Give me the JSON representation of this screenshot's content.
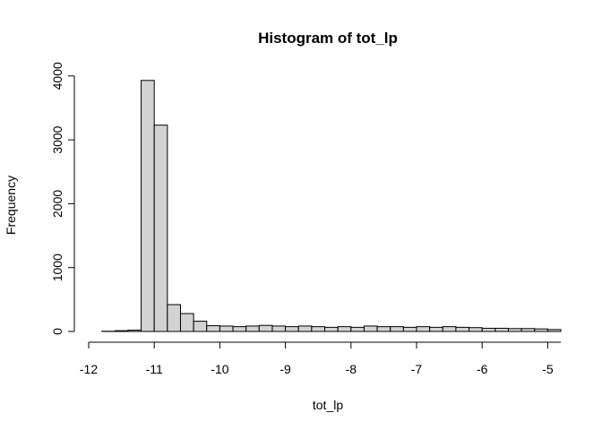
{
  "chart_data": {
    "type": "bar",
    "title": "Histogram of tot_lp",
    "xlabel": "tot_lp",
    "ylabel": "Frequency",
    "xlim": [
      -12.0,
      -4.8
    ],
    "ylim": [
      0,
      4000
    ],
    "x_ticks": [
      -12,
      -11,
      -10,
      -9,
      -8,
      -7,
      -6,
      -5
    ],
    "y_ticks": [
      0,
      1000,
      2000,
      3000,
      4000
    ],
    "bins": [
      {
        "x0": -11.8,
        "x1": -11.6,
        "count": 3
      },
      {
        "x0": -11.6,
        "x1": -11.4,
        "count": 12
      },
      {
        "x0": -11.4,
        "x1": -11.2,
        "count": 20
      },
      {
        "x0": -11.2,
        "x1": -11.0,
        "count": 3930
      },
      {
        "x0": -11.0,
        "x1": -10.8,
        "count": 3230
      },
      {
        "x0": -10.8,
        "x1": -10.6,
        "count": 420
      },
      {
        "x0": -10.6,
        "x1": -10.4,
        "count": 280
      },
      {
        "x0": -10.4,
        "x1": -10.2,
        "count": 160
      },
      {
        "x0": -10.2,
        "x1": -10.0,
        "count": 90
      },
      {
        "x0": -10.0,
        "x1": -9.8,
        "count": 85
      },
      {
        "x0": -9.8,
        "x1": -9.6,
        "count": 75
      },
      {
        "x0": -9.6,
        "x1": -9.4,
        "count": 85
      },
      {
        "x0": -9.4,
        "x1": -9.2,
        "count": 95
      },
      {
        "x0": -9.2,
        "x1": -9.0,
        "count": 85
      },
      {
        "x0": -9.0,
        "x1": -8.8,
        "count": 75
      },
      {
        "x0": -8.8,
        "x1": -8.6,
        "count": 85
      },
      {
        "x0": -8.6,
        "x1": -8.4,
        "count": 75
      },
      {
        "x0": -8.4,
        "x1": -8.2,
        "count": 65
      },
      {
        "x0": -8.2,
        "x1": -8.0,
        "count": 75
      },
      {
        "x0": -8.0,
        "x1": -7.8,
        "count": 65
      },
      {
        "x0": -7.8,
        "x1": -7.6,
        "count": 85
      },
      {
        "x0": -7.6,
        "x1": -7.4,
        "count": 75
      },
      {
        "x0": -7.4,
        "x1": -7.2,
        "count": 75
      },
      {
        "x0": -7.2,
        "x1": -7.0,
        "count": 65
      },
      {
        "x0": -7.0,
        "x1": -6.8,
        "count": 75
      },
      {
        "x0": -6.8,
        "x1": -6.6,
        "count": 65
      },
      {
        "x0": -6.6,
        "x1": -6.4,
        "count": 75
      },
      {
        "x0": -6.4,
        "x1": -6.2,
        "count": 65
      },
      {
        "x0": -6.2,
        "x1": -6.0,
        "count": 60
      },
      {
        "x0": -6.0,
        "x1": -5.8,
        "count": 50
      },
      {
        "x0": -5.8,
        "x1": -5.6,
        "count": 50
      },
      {
        "x0": -5.6,
        "x1": -5.4,
        "count": 45
      },
      {
        "x0": -5.4,
        "x1": -5.2,
        "count": 45
      },
      {
        "x0": -5.2,
        "x1": -5.0,
        "count": 40
      },
      {
        "x0": -5.0,
        "x1": -4.8,
        "count": 30
      }
    ]
  }
}
